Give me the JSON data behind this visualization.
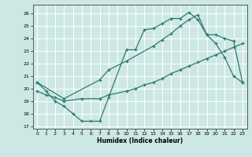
{
  "xlabel": "Humidex (Indice chaleur)",
  "background_color": "#cde8e4",
  "grid_color": "#ffffff",
  "line_color": "#2d7a70",
  "xlim": [
    -0.5,
    23.5
  ],
  "ylim": [
    16.8,
    26.7
  ],
  "yticks": [
    17,
    18,
    19,
    20,
    21,
    22,
    23,
    24,
    25,
    26
  ],
  "xticks": [
    0,
    1,
    2,
    3,
    4,
    5,
    6,
    7,
    8,
    9,
    10,
    11,
    12,
    13,
    14,
    15,
    16,
    17,
    18,
    19,
    20,
    21,
    22,
    23
  ],
  "line1_x": [
    0,
    1,
    2,
    3,
    4,
    5,
    6,
    7,
    8,
    10,
    11,
    12,
    13,
    14,
    15,
    16,
    17,
    18,
    19,
    20,
    21,
    22,
    23
  ],
  "line1_y": [
    20.5,
    19.8,
    19.0,
    18.6,
    18.0,
    17.4,
    17.4,
    17.4,
    19.3,
    23.1,
    23.1,
    24.7,
    24.8,
    25.2,
    25.6,
    25.6,
    26.1,
    25.5,
    24.3,
    23.6,
    22.5,
    21.0,
    20.5
  ],
  "line2_x": [
    0,
    3,
    7,
    8,
    10,
    13,
    14,
    15,
    16,
    17,
    18,
    19,
    20,
    21,
    22,
    23
  ],
  "line2_y": [
    20.5,
    19.2,
    20.7,
    21.5,
    22.2,
    23.4,
    23.9,
    24.4,
    25.0,
    25.5,
    25.9,
    24.3,
    24.3,
    24.0,
    23.8,
    20.5
  ],
  "line3_x": [
    0,
    1,
    2,
    3,
    5,
    7,
    8,
    10,
    11,
    12,
    13,
    14,
    15,
    16,
    17,
    18,
    19,
    20,
    21,
    22,
    23
  ],
  "line3_y": [
    19.8,
    19.5,
    19.3,
    19.0,
    19.2,
    19.2,
    19.5,
    19.8,
    20.0,
    20.3,
    20.5,
    20.8,
    21.2,
    21.5,
    21.8,
    22.1,
    22.4,
    22.7,
    23.0,
    23.3,
    23.6
  ]
}
